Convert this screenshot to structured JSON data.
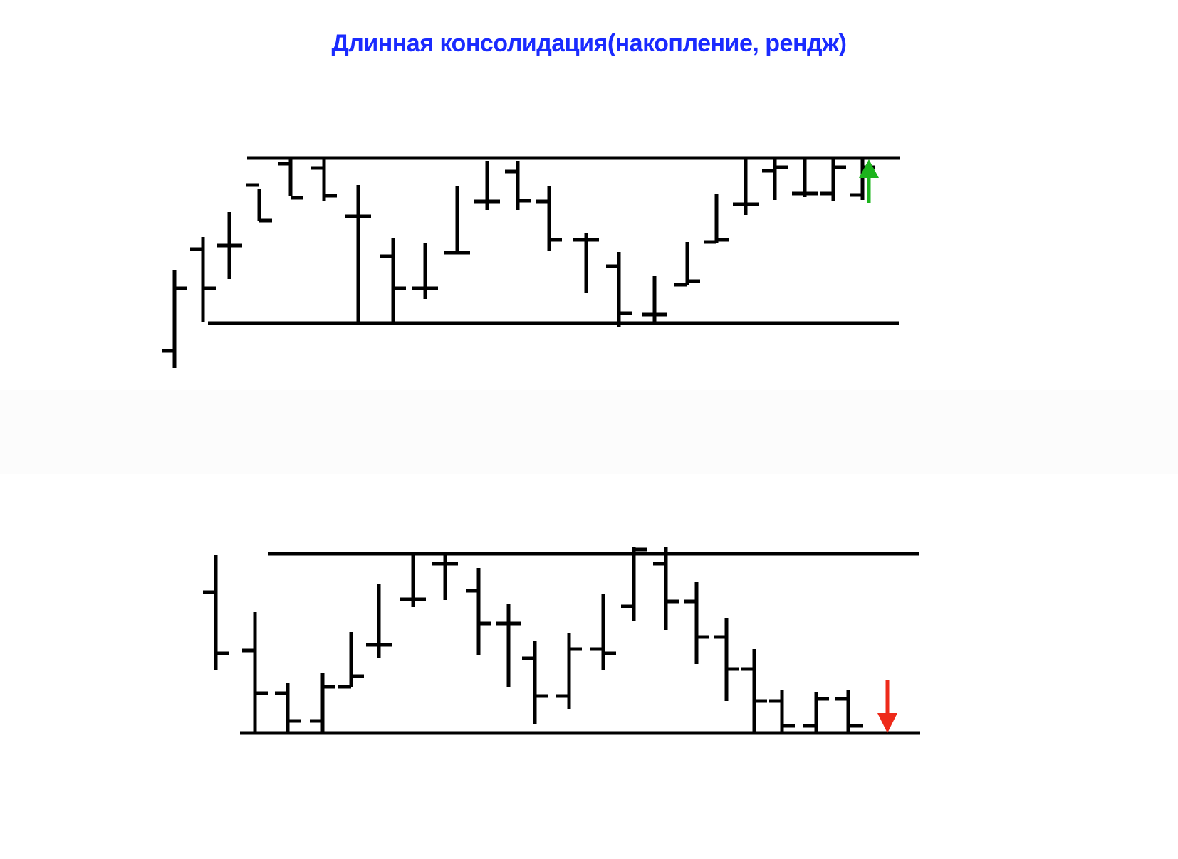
{
  "title": "Длинная консолидация(накопление, рендж)",
  "colors": {
    "title": "#1a2bff",
    "bars": "#000000",
    "arrow_up": "#1db41d",
    "arrow_down": "#ee2a1a",
    "background": "#ffffff"
  },
  "diagrams": [
    {
      "name": "accumulation-range-breakout-up",
      "breakout": "up",
      "arrow_icon": "green-up-arrow-icon",
      "bar_count": 24
    },
    {
      "name": "distribution-range-breakout-down",
      "breakout": "down",
      "arrow_icon": "red-down-arrow-icon",
      "bar_count": 23
    }
  ]
}
